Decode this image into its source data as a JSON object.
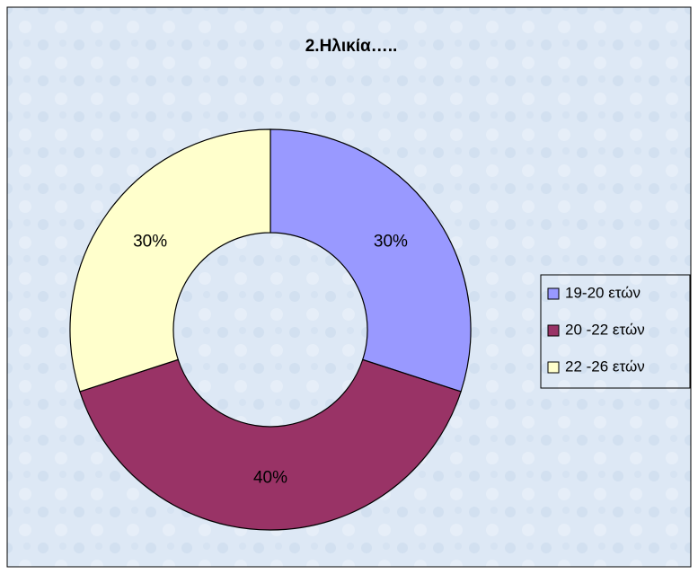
{
  "chart_data": {
    "type": "donut",
    "title": "2.Ηλικία…..",
    "categories": [
      "19-20 ετών",
      "20 -22 ετών",
      "22 -26 ετών"
    ],
    "values": [
      30,
      40,
      30
    ],
    "value_labels": [
      "30%",
      "40%",
      "30%"
    ],
    "colors": [
      "#9999ff",
      "#993366",
      "#ffffcc"
    ],
    "legend": "right"
  }
}
